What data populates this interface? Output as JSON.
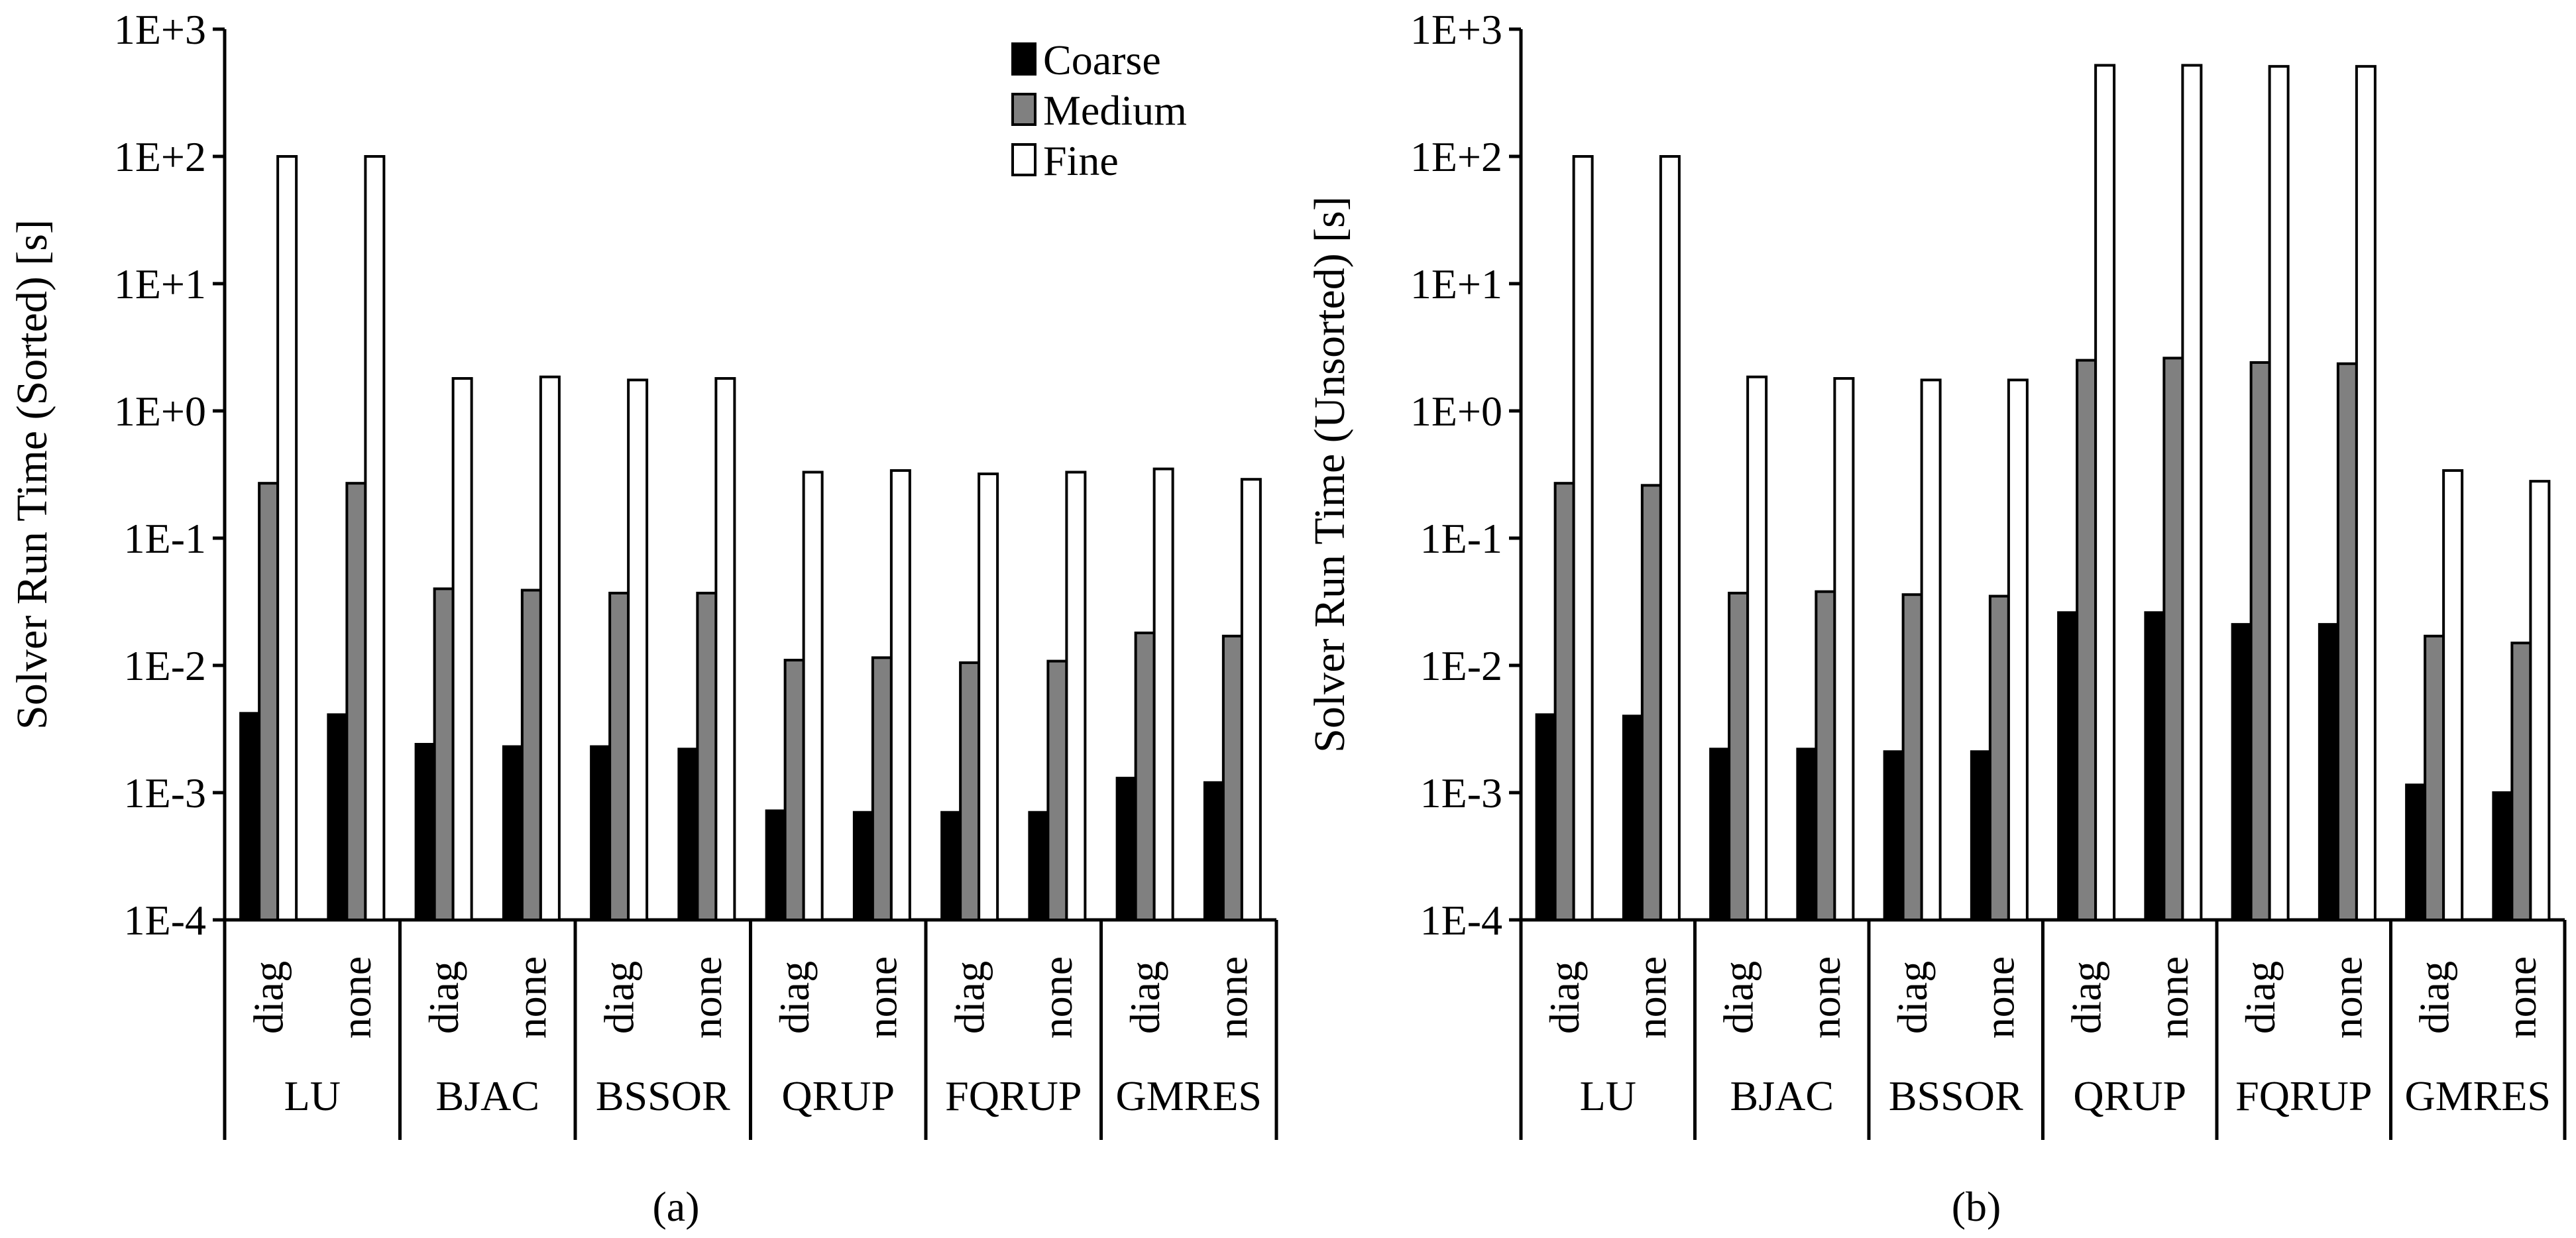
{
  "chart_data": [
    {
      "type": "bar",
      "caption": "(a)",
      "ylabel": "Solver Run Time (Sorted) [s]",
      "yscale": "log",
      "ylim": [
        0.0001,
        1000
      ],
      "yticks": [
        0.0001,
        0.001,
        0.01,
        0.1,
        1,
        10,
        100,
        1000
      ],
      "ytick_labels": [
        "1E-4",
        "1E-3",
        "1E-2",
        "1E-1",
        "1E+0",
        "1E+1",
        "1E+2",
        "1E+3"
      ],
      "groups": [
        "LU",
        "BJAC",
        "BSSOR",
        "QRUP",
        "FQRUP",
        "GMRES"
      ],
      "subcategories": [
        "diag",
        "none"
      ],
      "categories": [
        "diag",
        "none",
        "diag",
        "none",
        "diag",
        "none",
        "diag",
        "none",
        "diag",
        "none",
        "diag",
        "none"
      ],
      "legend": {
        "position": "top-right",
        "entries": [
          "Coarse",
          "Medium",
          "Fine"
        ]
      },
      "series": [
        {
          "name": "Coarse",
          "color": "#000000",
          "values": [
            0.0042,
            0.0041,
            0.0024,
            0.0023,
            0.0023,
            0.0022,
            0.00072,
            0.0007,
            0.0007,
            0.0007,
            0.0013,
            0.0012
          ]
        },
        {
          "name": "Medium",
          "color": "#808080",
          "values": [
            0.27,
            0.27,
            0.04,
            0.039,
            0.037,
            0.037,
            0.011,
            0.0115,
            0.0105,
            0.0108,
            0.018,
            0.017
          ]
        },
        {
          "name": "Fine",
          "color": "#ffffff",
          "values": [
            100,
            100,
            1.8,
            1.85,
            1.75,
            1.8,
            0.33,
            0.34,
            0.32,
            0.33,
            0.35,
            0.29
          ]
        }
      ]
    },
    {
      "type": "bar",
      "caption": "(b)",
      "ylabel": "Solver Run Time (Unsorted) [s]",
      "yscale": "log",
      "ylim": [
        0.0001,
        1000
      ],
      "yticks": [
        0.0001,
        0.001,
        0.01,
        0.1,
        1,
        10,
        100,
        1000
      ],
      "ytick_labels": [
        "1E-4",
        "1E-3",
        "1E-2",
        "1E-1",
        "1E+0",
        "1E+1",
        "1E+2",
        "1E+3"
      ],
      "groups": [
        "LU",
        "BJAC",
        "BSSOR",
        "QRUP",
        "FQRUP",
        "GMRES"
      ],
      "subcategories": [
        "diag",
        "none"
      ],
      "categories": [
        "diag",
        "none",
        "diag",
        "none",
        "diag",
        "none",
        "diag",
        "none",
        "diag",
        "none",
        "diag",
        "none"
      ],
      "series": [
        {
          "name": "Coarse",
          "color": "#000000",
          "values": [
            0.0041,
            0.004,
            0.0022,
            0.0022,
            0.0021,
            0.0021,
            0.026,
            0.026,
            0.021,
            0.021,
            0.00115,
            0.001
          ]
        },
        {
          "name": "Medium",
          "color": "#808080",
          "values": [
            0.27,
            0.26,
            0.037,
            0.038,
            0.036,
            0.035,
            2.5,
            2.6,
            2.4,
            2.35,
            0.017,
            0.015
          ]
        },
        {
          "name": "Fine",
          "color": "#ffffff",
          "values": [
            100,
            100,
            1.85,
            1.8,
            1.75,
            1.75,
            520,
            520,
            510,
            510,
            0.34,
            0.28
          ]
        }
      ]
    }
  ]
}
